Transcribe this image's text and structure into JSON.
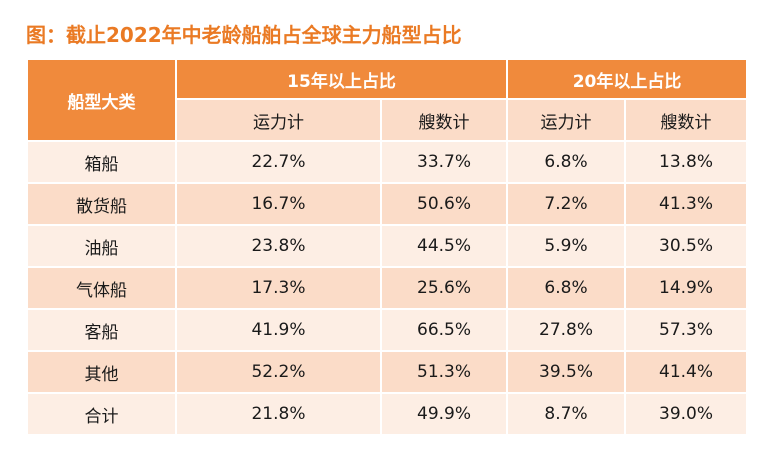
{
  "title": "图：截止2022年中老龄船舶占全球主力船型占比",
  "table": {
    "corner_header": "船型大类",
    "group_headers": [
      "15年以上占比",
      "20年以上占比"
    ],
    "sub_headers": [
      "运力计",
      "艘数计",
      "运力计",
      "艘数计"
    ],
    "rows": [
      {
        "name": "箱船",
        "values": [
          "22.7%",
          "33.7%",
          "6.8%",
          "13.8%"
        ]
      },
      {
        "name": "散货船",
        "values": [
          "16.7%",
          "50.6%",
          "7.2%",
          "41.3%"
        ]
      },
      {
        "name": "油船",
        "values": [
          "23.8%",
          "44.5%",
          "5.9%",
          "30.5%"
        ]
      },
      {
        "name": "气体船",
        "values": [
          "17.3%",
          "25.6%",
          "6.8%",
          "14.9%"
        ]
      },
      {
        "name": "客船",
        "values": [
          "41.9%",
          "66.5%",
          "27.8%",
          "57.3%"
        ]
      },
      {
        "name": "其他",
        "values": [
          "52.2%",
          "51.3%",
          "39.5%",
          "41.4%"
        ]
      },
      {
        "name": "合计",
        "values": [
          "21.8%",
          "49.9%",
          "8.7%",
          "39.0%"
        ]
      }
    ]
  },
  "colors": {
    "title": "#ea7a24",
    "header_orange": "#f08a3c",
    "row_light": "#fdeee4",
    "row_dark": "#fbdcc8"
  }
}
